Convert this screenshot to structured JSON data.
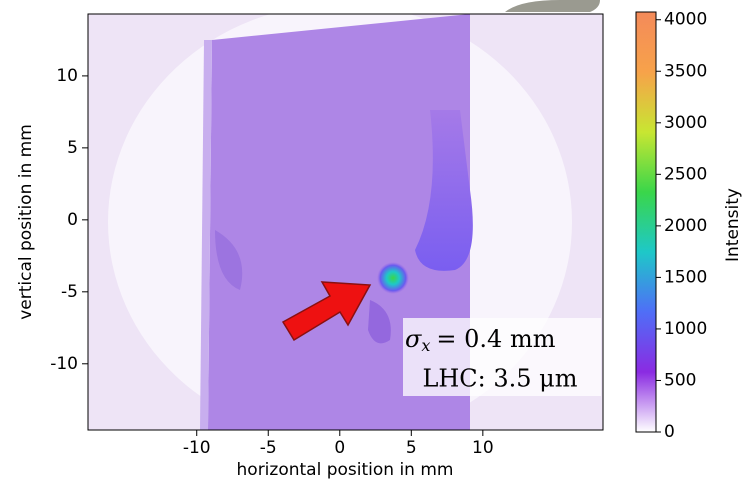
{
  "chart_data": {
    "type": "image",
    "xlabel": "horizontal position in mm",
    "ylabel": "vertical position in mm",
    "xlim": [
      -17.6,
      18.4
    ],
    "ylim": [
      -14.6,
      14.3
    ],
    "xticks": [
      -10,
      -5,
      0,
      5,
      10
    ],
    "yticks": [
      -10,
      -5,
      0,
      5,
      10
    ],
    "colorbar": {
      "label": "Intensity",
      "lim": [
        0,
        4075
      ],
      "ticks": [
        0,
        500,
        1000,
        1500,
        2000,
        2500,
        3000,
        3500,
        4000
      ],
      "colormap": [
        "#ffffff",
        "#8a2be2",
        "#4f6ef7",
        "#1ec8c8",
        "#3ad64a",
        "#c8e632",
        "#f7a24a",
        "#f48a5a"
      ]
    },
    "annotation": {
      "sigma": "σ",
      "sub": "x",
      "rest": "=  0.4 mm",
      "line2": "LHC: 3.5 μm"
    }
  }
}
